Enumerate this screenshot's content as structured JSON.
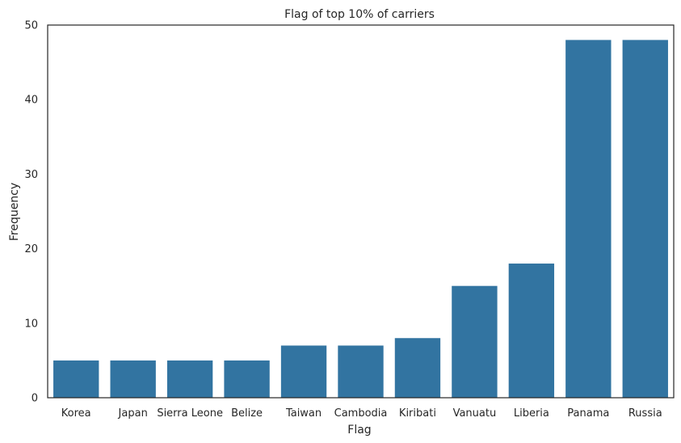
{
  "chart_data": {
    "type": "bar",
    "title": "Flag of top 10% of carriers",
    "xlabel": "Flag",
    "ylabel": "Frequency",
    "categories": [
      "Korea",
      "Japan",
      "Sierra Leone",
      "Belize",
      "Taiwan",
      "Cambodia",
      "Kiribati",
      "Vanuatu",
      "Liberia",
      "Panama",
      "Russia"
    ],
    "values": [
      5,
      5,
      5,
      5,
      7,
      7,
      8,
      15,
      18,
      48,
      48
    ],
    "ylim": [
      0,
      50
    ],
    "yticks": [
      0,
      10,
      20,
      30,
      40,
      50
    ],
    "grid": false,
    "bar_color": "#3274a1"
  }
}
